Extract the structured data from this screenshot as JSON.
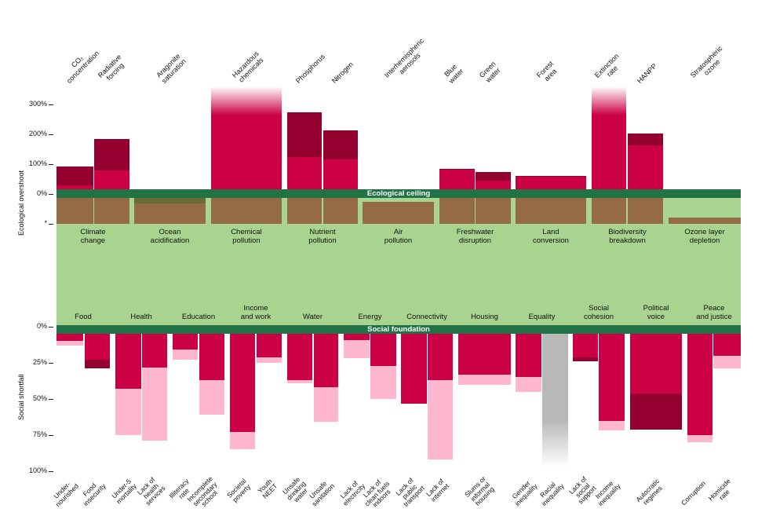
{
  "colors": {
    "current": "#cc0044",
    "worse": "#930030",
    "earlier": "#ffb6cf",
    "band": "#217346",
    "safe_space": "#a8d48f",
    "boundary": "#946b45",
    "near_boundary": "#6b6b3a",
    "unquantified": "#b8b8b8"
  },
  "chart_data": [
    {
      "type": "bar",
      "title": "",
      "ylabel": "Ecological overshoot",
      "ylim": [
        0,
        300
      ],
      "yticks": [
        "300%",
        "200%",
        "100%",
        "0%",
        "*"
      ],
      "band_label": "Ecological ceiling",
      "groups": [
        {
          "label": "Climate\nchange",
          "indicators": [
            {
              "label": "CO₂\nconcentration",
              "inner": 29,
              "outer": 93
            },
            {
              "label": "Radiative\nforcing",
              "inner": 79,
              "outer": 184
            }
          ]
        },
        {
          "label": "Ocean\nacidification",
          "indicators": [
            {
              "label": "Aragonite\nsaturation",
              "inner": null,
              "outer": null,
              "near_boundary": true
            }
          ]
        },
        {
          "label": "Chemical\npollution",
          "indicators": [
            {
              "label": "Hazardous\nchemicals",
              "inner": null,
              "outer": null,
              "unquantified_overshoot": true
            }
          ]
        },
        {
          "label": "Nutrient\npollution",
          "indicators": [
            {
              "label": "Phosphorus",
              "inner": 124,
              "outer": 274
            },
            {
              "label": "Nitrogen",
              "inner": 116,
              "outer": 213
            }
          ]
        },
        {
          "label": "Air\npollution",
          "indicators": [
            {
              "label": "Interhemispheric\naerosols",
              "inner": null,
              "outer": null,
              "within_boundary": 0.85
            }
          ]
        },
        {
          "label": "Freshwater\ndisruption",
          "indicators": [
            {
              "label": "Blue\nwater",
              "inner": 81,
              "outer": 84
            },
            {
              "label": "Green\nwater",
              "inner": 45,
              "outer": 74
            }
          ]
        },
        {
          "label": "Land\nconversion",
          "indicators": [
            {
              "label": "Forest\narea",
              "inner": 58,
              "outer": 61
            }
          ]
        },
        {
          "label": "Biodiversity\nbreakdown",
          "indicators": [
            {
              "label": "Extinction\nrate",
              "inner": null,
              "outer": null,
              "unquantified_overshoot": true
            },
            {
              "label": "HANPP",
              "inner": 163,
              "outer": 203
            }
          ]
        },
        {
          "label": "Ozone layer\ndepletion",
          "indicators": [
            {
              "label": "Stratospheric\nozone",
              "inner": null,
              "outer": null,
              "within_boundary": 0.55
            }
          ]
        }
      ]
    },
    {
      "type": "bar",
      "title": "",
      "ylabel": "Social shortfall",
      "ylim": [
        0,
        100
      ],
      "yticks": [
        "0%",
        "25%",
        "50%",
        "75%",
        "100%"
      ],
      "band_label": "Social foundation",
      "groups": [
        {
          "label": "Food",
          "indicators": [
            {
              "label": "Under-\nnourished",
              "current": 10,
              "other": 13,
              "other_tone": "earlier"
            },
            {
              "label": "Food\ninsecurity",
              "current": 23,
              "other": 29,
              "other_tone": "worse"
            }
          ]
        },
        {
          "label": "Health",
          "indicators": [
            {
              "label": "Under-5\nmortality",
              "current": 43,
              "other": 75,
              "other_tone": "earlier"
            },
            {
              "label": "Lack of\nhealth\nservices",
              "current": 28,
              "other": 79,
              "other_tone": "earlier"
            }
          ]
        },
        {
          "label": "Education",
          "indicators": [
            {
              "label": "Illiteracy\nrate",
              "current": 16,
              "other": 23,
              "other_tone": "earlier"
            },
            {
              "label": "Incomplete\nsecondary\nschool",
              "current": 37,
              "other": 61,
              "other_tone": "earlier"
            }
          ]
        },
        {
          "label": "Income\nand work",
          "indicators": [
            {
              "label": "Societal\npoverty",
              "current": 73,
              "other": 85,
              "other_tone": "earlier"
            },
            {
              "label": "Youth\nNEET",
              "current": 21,
              "other": 25,
              "other_tone": "earlier"
            }
          ]
        },
        {
          "label": "Water",
          "indicators": [
            {
              "label": "Unsafe\ndrinking\nwater",
              "current": 37,
              "other": 39,
              "other_tone": "earlier"
            },
            {
              "label": "Unsafe\nsanitation",
              "current": 42,
              "other": 66,
              "other_tone": "earlier"
            }
          ]
        },
        {
          "label": "Energy",
          "indicators": [
            {
              "label": "Lack of\nelectricity",
              "current": 9,
              "other": 22,
              "other_tone": "earlier"
            },
            {
              "label": "Lack of\nclean fuels\nindoors",
              "current": 27,
              "other": 50,
              "other_tone": "earlier"
            }
          ]
        },
        {
          "label": "Connectivity",
          "indicators": [
            {
              "label": "Lack of\npublic\ntransport",
              "current": 53,
              "other": null,
              "other_tone": null
            },
            {
              "label": "Lack of\ninternet",
              "current": 37,
              "other": 92,
              "other_tone": "earlier"
            }
          ]
        },
        {
          "label": "Housing",
          "indicators": [
            {
              "label": "Slums or\ninformal\nhousing",
              "current": 33,
              "other": 40,
              "other_tone": "earlier"
            }
          ]
        },
        {
          "label": "Equality",
          "indicators": [
            {
              "label": "Gender\ninequality",
              "current": 35,
              "other": 45,
              "other_tone": "earlier"
            },
            {
              "label": "Racial\ninequality",
              "current": null,
              "other": null,
              "unquantified_shortfall": true
            }
          ]
        },
        {
          "label": "Social\ncohesion",
          "indicators": [
            {
              "label": "Lack of\nsocial\nsupport",
              "current": 21,
              "other": 24,
              "other_tone": "worse"
            },
            {
              "label": "Income\ninequality",
              "current": 65,
              "other": 72,
              "other_tone": "earlier"
            }
          ]
        },
        {
          "label": "Political\nvoice",
          "indicators": [
            {
              "label": "Autocratic\nregimes",
              "current": 46,
              "other": 71,
              "other_tone": "worse"
            }
          ]
        },
        {
          "label": "Peace\nand justice",
          "indicators": [
            {
              "label": "Corruption",
              "current": 75,
              "other": 80,
              "other_tone": "earlier"
            },
            {
              "label": "Homicide\nrate",
              "current": 20,
              "other": 29,
              "other_tone": "earlier"
            }
          ]
        }
      ]
    }
  ]
}
